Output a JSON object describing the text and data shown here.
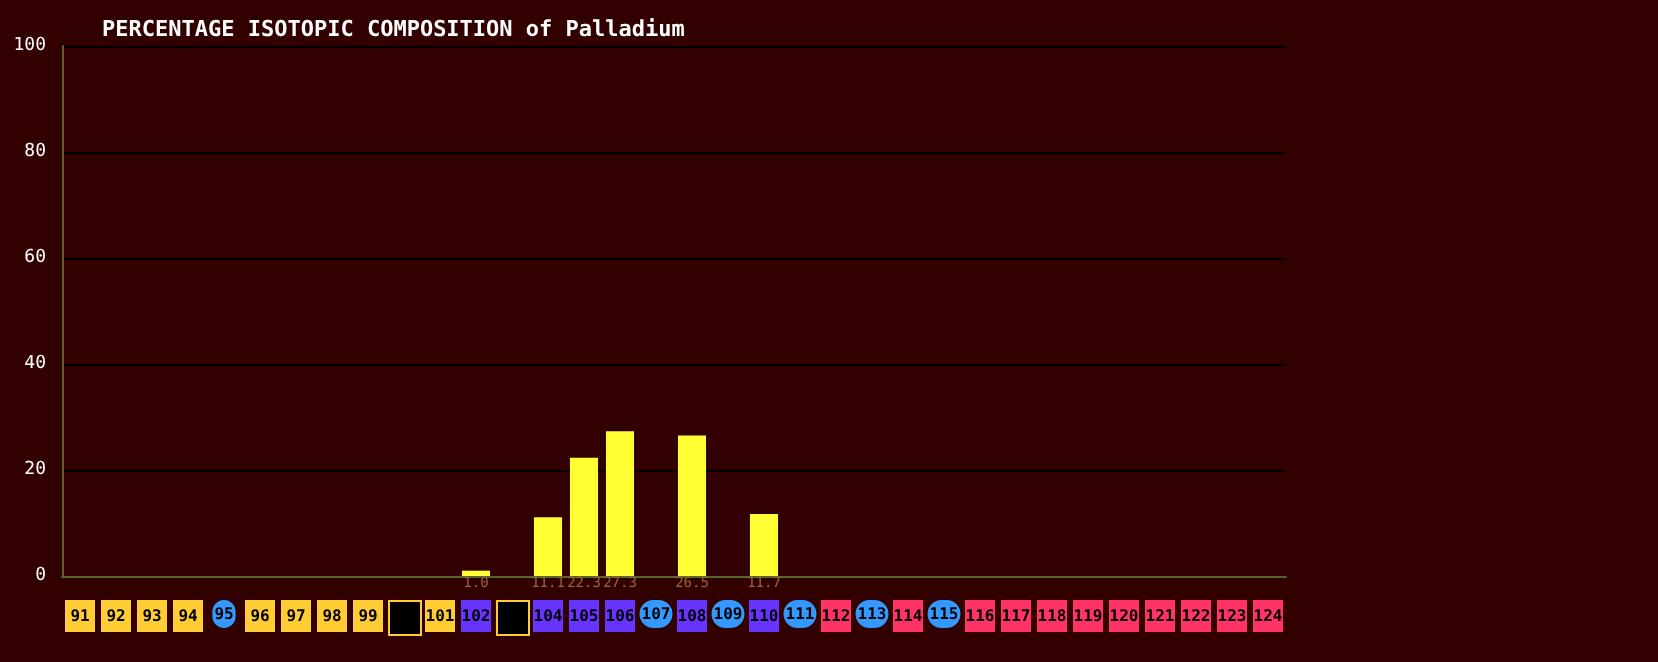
{
  "chart_data": {
    "type": "bar",
    "title": "PERCENTAGE ISOTOPIC COMPOSITION of Palladium",
    "categories": [
      "91",
      "92",
      "93",
      "94",
      "95",
      "96",
      "97",
      "98",
      "99",
      null,
      "101",
      "102",
      null,
      "104",
      "105",
      "106",
      "107",
      "108",
      "109",
      "110",
      "111",
      "112",
      "113",
      "114",
      "115",
      "116",
      "117",
      "118",
      "119",
      "120",
      "121",
      "122",
      "123",
      "124"
    ],
    "values": [
      null,
      null,
      null,
      null,
      null,
      null,
      null,
      null,
      null,
      null,
      null,
      1.0,
      null,
      11.1,
      22.3,
      27.3,
      null,
      26.5,
      null,
      11.7,
      null,
      null,
      null,
      null,
      null,
      null,
      null,
      null,
      null,
      null,
      null,
      null,
      null,
      null
    ],
    "color": "#ffff33",
    "ylim": [
      0,
      100
    ],
    "yticks": [
      0,
      20,
      40,
      60,
      80,
      100
    ],
    "grid": "y",
    "value_labels": [
      null,
      null,
      null,
      null,
      null,
      null,
      null,
      null,
      null,
      null,
      null,
      "1.0",
      null,
      "11.1",
      "22.3",
      "27.3",
      null,
      "26.5",
      null,
      "11.7",
      null,
      null,
      null,
      null,
      null,
      null,
      null,
      null,
      null,
      null,
      null,
      null,
      null,
      null
    ]
  }
}
